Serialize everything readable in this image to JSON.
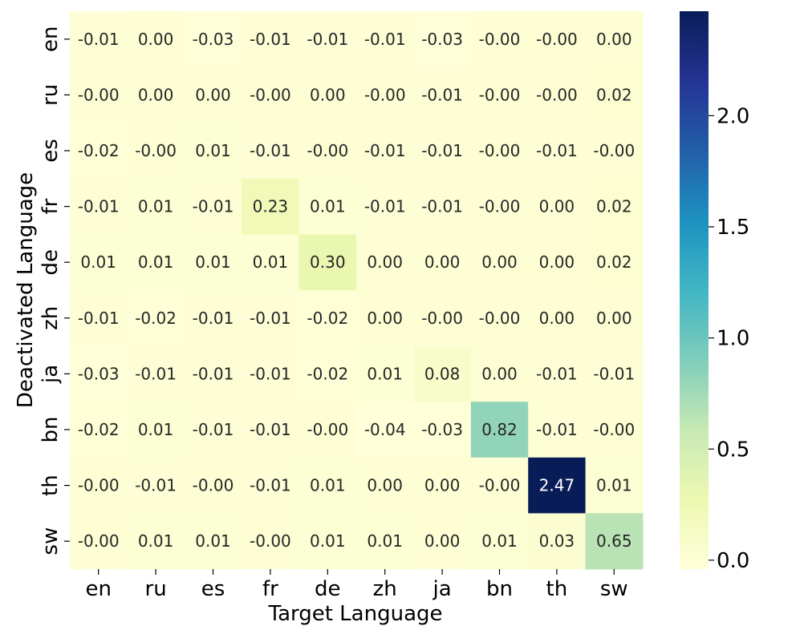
{
  "chart_data": {
    "type": "heatmap",
    "title": "",
    "xlabel": "Target Language",
    "ylabel": "Deactivated Language",
    "x_categories": [
      "en",
      "ru",
      "es",
      "fr",
      "de",
      "zh",
      "ja",
      "bn",
      "th",
      "sw"
    ],
    "y_categories": [
      "en",
      "ru",
      "es",
      "fr",
      "de",
      "zh",
      "ja",
      "bn",
      "th",
      "sw"
    ],
    "values": [
      [
        -0.01,
        0.0,
        -0.03,
        -0.01,
        -0.01,
        -0.01,
        -0.03,
        -0.0,
        -0.0,
        0.0
      ],
      [
        -0.0,
        0.0,
        0.0,
        -0.0,
        0.0,
        -0.0,
        -0.01,
        -0.0,
        -0.0,
        0.02
      ],
      [
        -0.02,
        -0.0,
        0.01,
        -0.01,
        -0.0,
        -0.01,
        -0.01,
        -0.0,
        -0.01,
        -0.0
      ],
      [
        -0.01,
        0.01,
        -0.01,
        0.23,
        0.01,
        -0.01,
        -0.01,
        -0.0,
        0.0,
        0.02
      ],
      [
        0.01,
        0.01,
        0.01,
        0.01,
        0.3,
        0.0,
        0.0,
        0.0,
        0.0,
        0.02
      ],
      [
        -0.01,
        -0.02,
        -0.01,
        -0.01,
        -0.02,
        0.0,
        -0.0,
        -0.0,
        0.0,
        0.0
      ],
      [
        -0.03,
        -0.01,
        -0.01,
        -0.01,
        -0.02,
        0.01,
        0.08,
        0.0,
        -0.01,
        -0.01
      ],
      [
        -0.02,
        0.01,
        -0.01,
        -0.01,
        -0.0,
        -0.04,
        -0.03,
        0.82,
        -0.01,
        -0.0
      ],
      [
        -0.0,
        -0.01,
        -0.0,
        -0.01,
        0.01,
        0.0,
        0.0,
        -0.0,
        2.47,
        0.01
      ],
      [
        -0.0,
        0.01,
        0.01,
        -0.0,
        0.01,
        0.01,
        0.0,
        0.01,
        0.03,
        0.65
      ]
    ],
    "cell_labels": [
      [
        "-0.01",
        "0.00",
        "-0.03",
        "-0.01",
        "-0.01",
        "-0.01",
        "-0.03",
        "-0.00",
        "-0.00",
        "0.00"
      ],
      [
        "-0.00",
        "0.00",
        "0.00",
        "-0.00",
        "0.00",
        "-0.00",
        "-0.01",
        "-0.00",
        "-0.00",
        "0.02"
      ],
      [
        "-0.02",
        "-0.00",
        "0.01",
        "-0.01",
        "-0.00",
        "-0.01",
        "-0.01",
        "-0.00",
        "-0.01",
        "-0.00"
      ],
      [
        "-0.01",
        "0.01",
        "-0.01",
        "0.23",
        "0.01",
        "-0.01",
        "-0.01",
        "-0.00",
        "0.00",
        "0.02"
      ],
      [
        "0.01",
        "0.01",
        "0.01",
        "0.01",
        "0.30",
        "0.00",
        "0.00",
        "0.00",
        "0.00",
        "0.02"
      ],
      [
        "-0.01",
        "-0.02",
        "-0.01",
        "-0.01",
        "-0.02",
        "0.00",
        "-0.00",
        "-0.00",
        "0.00",
        "0.00"
      ],
      [
        "-0.03",
        "-0.01",
        "-0.01",
        "-0.01",
        "-0.02",
        "0.01",
        "0.08",
        "0.00",
        "-0.01",
        "-0.01"
      ],
      [
        "-0.02",
        "0.01",
        "-0.01",
        "-0.01",
        "-0.00",
        "-0.04",
        "-0.03",
        "0.82",
        "-0.01",
        "-0.00"
      ],
      [
        "-0.00",
        "-0.01",
        "-0.00",
        "-0.01",
        "0.01",
        "0.00",
        "0.00",
        "-0.00",
        "2.47",
        "0.01"
      ],
      [
        "-0.00",
        "0.01",
        "0.01",
        "-0.00",
        "0.01",
        "0.01",
        "0.00",
        "0.01",
        "0.03",
        "0.65"
      ]
    ],
    "colormap": "YlGnBu",
    "colorbar": {
      "range": [
        -0.04,
        2.47
      ],
      "ticks": [
        0.0,
        0.5,
        1.0,
        1.5,
        2.0
      ],
      "tick_labels": [
        "0.0",
        "0.5",
        "1.0",
        "1.5",
        "2.0"
      ]
    },
    "grid": false,
    "legend": "colorbar-right"
  }
}
